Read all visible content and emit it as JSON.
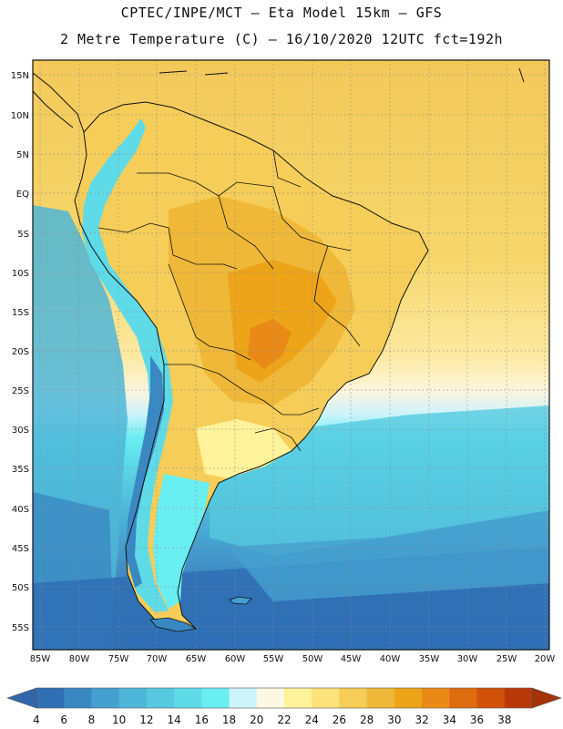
{
  "title": {
    "line1": "CPTEC/INPE/MCT –  Eta Model 15km – GFS",
    "line2": "2 Metre Temperature (C) – 16/10/2020 12UTC fct=192h"
  },
  "axes": {
    "lat_labels": [
      "15N",
      "10N",
      "5N",
      "EQ",
      "5S",
      "10S",
      "15S",
      "20S",
      "25S",
      "30S",
      "35S",
      "40S",
      "45S",
      "50S",
      "55S"
    ],
    "lon_labels": [
      "85W",
      "80W",
      "75W",
      "70W",
      "65W",
      "60W",
      "55W",
      "50W",
      "45W",
      "40W",
      "35W",
      "30W",
      "25W",
      "20W"
    ]
  },
  "colorbar": {
    "labels": [
      "4",
      "6",
      "8",
      "10",
      "12",
      "14",
      "16",
      "18",
      "20",
      "22",
      "24",
      "26",
      "28",
      "30",
      "32",
      "34",
      "36",
      "38"
    ],
    "colors": [
      "#2f6fb4",
      "#3a88c2",
      "#45a0cf",
      "#4db6d8",
      "#56c9e0",
      "#5fdbe8",
      "#69eef2",
      "#cdf4fb",
      "#fdf8e2",
      "#fef29a",
      "#fbe27a",
      "#f5cd58",
      "#f0b838",
      "#eea419",
      "#e98a16",
      "#df6b0f",
      "#d1500a",
      "#b8380a"
    ],
    "under_color": "#3366a8",
    "over_color": "#a63207"
  },
  "chart_data": {
    "type": "heatmap",
    "variable": "2 Metre Temperature",
    "units": "C",
    "model": "Eta 15km – GFS",
    "init_time": "16/10/2020 12UTC",
    "forecast_hour": 192,
    "lon_range": [
      -85,
      -20
    ],
    "lat_range": [
      -57,
      17
    ],
    "value_range": [
      4,
      38
    ],
    "regional_values": [
      {
        "region": "Central Brazil / Mato Grosso",
        "value": 33
      },
      {
        "region": "Amazon basin",
        "value": 29
      },
      {
        "region": "Caribbean / tropical Atlantic",
        "value": 27
      },
      {
        "region": "NE Brazil coast",
        "value": 29
      },
      {
        "region": "Andes highlands",
        "value": 12
      },
      {
        "region": "Pampas / Uruguay",
        "value": 22
      },
      {
        "region": "Patagonia",
        "value": 13
      },
      {
        "region": "South Atlantic mid-latitudes",
        "value": 15
      },
      {
        "region": "Southern ocean / Drake Passage",
        "value": 6
      },
      {
        "region": "SE Pacific off Chile",
        "value": 12
      }
    ]
  }
}
